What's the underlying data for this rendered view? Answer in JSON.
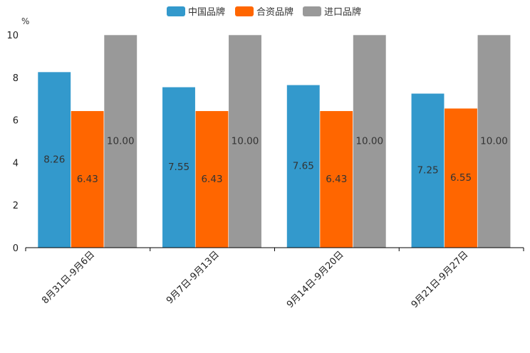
{
  "chart_data": {
    "type": "bar",
    "unit": "%",
    "categories": [
      "8月31日-9月6日",
      "9月7日-9月13日",
      "9月14日-9月20日",
      "9月21日-9月27日"
    ],
    "series": [
      {
        "name": "中国品牌",
        "color": "#3399cc",
        "values": [
          8.26,
          7.55,
          7.65,
          7.25
        ],
        "labels": [
          "8.26",
          "7.55",
          "7.65",
          "7.25"
        ]
      },
      {
        "name": "合资品牌",
        "color": "#ff6600",
        "values": [
          6.43,
          6.43,
          6.43,
          6.55
        ],
        "labels": [
          "6.43",
          "6.43",
          "6.43",
          "6.55"
        ]
      },
      {
        "name": "进口品牌",
        "color": "#999999",
        "values": [
          10.0,
          10.0,
          10.0,
          10.0
        ],
        "labels": [
          "10.00",
          "10.00",
          "10.00",
          "10.00"
        ]
      }
    ],
    "ylim": [
      0,
      10
    ],
    "yticks": [
      "0",
      "2",
      "4",
      "6",
      "8",
      "10"
    ],
    "legend_position": "top-center",
    "grid": false
  }
}
